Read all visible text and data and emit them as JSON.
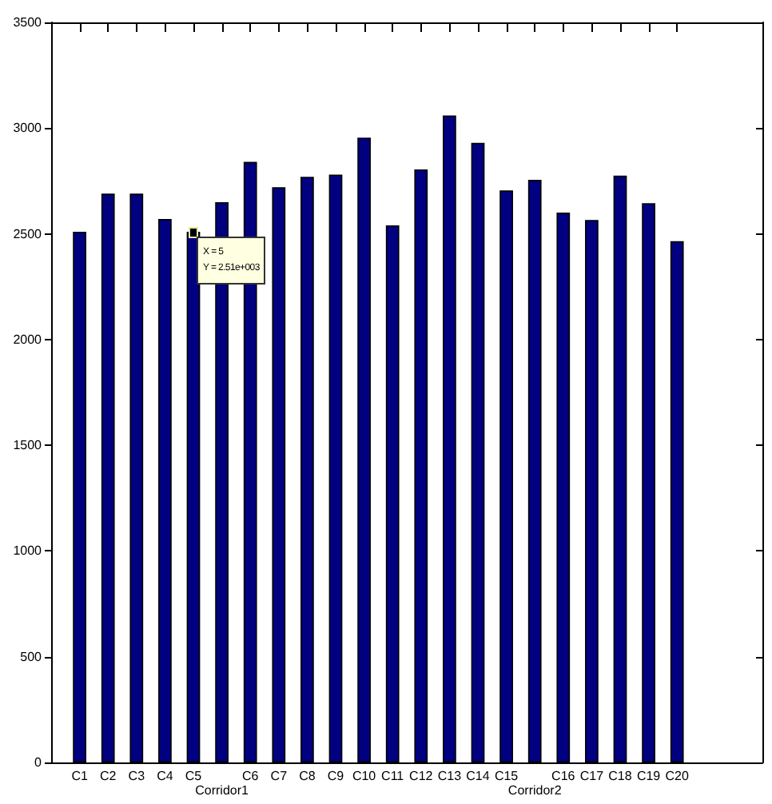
{
  "chart_data": {
    "type": "bar",
    "categories": [
      "C1",
      "C2",
      "C3",
      "C4",
      "C5",
      "Corridor1",
      "C6",
      "C7",
      "C8",
      "C9",
      "C10",
      "C11",
      "C12",
      "C13",
      "C14",
      "C15",
      "Corridor2",
      "C16",
      "C17",
      "C18",
      "C19",
      "C20"
    ],
    "values": [
      2510,
      2690,
      2690,
      2570,
      2510,
      2650,
      2840,
      2720,
      2770,
      2780,
      2955,
      2540,
      2805,
      3060,
      2930,
      2705,
      2755,
      2600,
      2565,
      2775,
      2645,
      2465
    ],
    "color": "#000080",
    "ylim": [
      0,
      3500
    ],
    "yticks": [
      0,
      500,
      1000,
      1500,
      2000,
      2500,
      3000,
      3500
    ],
    "annotations": [
      {
        "text": "X = 5\nY = 2.51e+003",
        "x": "C5",
        "y": 2510
      }
    ]
  }
}
